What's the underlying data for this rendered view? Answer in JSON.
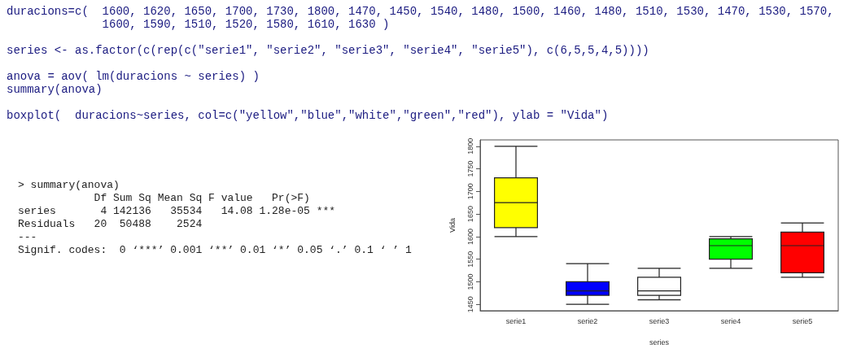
{
  "chart_data": {
    "type": "box",
    "xlabel": "series",
    "ylabel": "Vida",
    "categories": [
      "serie1",
      "serie2",
      "serie3",
      "serie4",
      "serie5"
    ],
    "colors": [
      "#ffff00",
      "#0000ff",
      "#ffffff",
      "#00ff00",
      "#ff0000"
    ],
    "boxes": [
      {
        "low": 1600,
        "q1": 1620,
        "median": 1675,
        "q3": 1730,
        "high": 1800
      },
      {
        "low": 1450,
        "q1": 1470,
        "median": 1480,
        "q3": 1500,
        "high": 1540
      },
      {
        "low": 1460,
        "q1": 1470,
        "median": 1480,
        "q3": 1510,
        "high": 1530
      },
      {
        "low": 1530,
        "q1": 1550,
        "median": 1580,
        "q3": 1595,
        "high": 1600
      },
      {
        "low": 1510,
        "q1": 1520,
        "median": 1580,
        "q3": 1610,
        "high": 1630
      }
    ],
    "ylim": [
      1436,
      1814
    ],
    "yticks": [
      1450,
      1500,
      1550,
      1600,
      1650,
      1700,
      1750,
      1800
    ],
    "grid": false,
    "annotations": [
      "duracions=c(  1600, 1620, 1650, 1700, 1730, 1800, 1470, 1450, 1540, 1480, 1500, 1460, 1480, 1510, 1530, 1470, 1530, 1570,",
      "              1600, 1590, 1510, 1520, 1580, 1610, 1630 )",
      "series <- as.factor(c(rep(c(\"serie1\", \"serie2\", \"serie3\", \"serie4\", \"serie5\"), c(6,5,5,4,5))))",
      "anova = aov( lm(duracions ~ series) )",
      "summary(anova)",
      "boxplot(  duracions~series, col=c(\"yellow\",\"blue\",\"white\",\"green\",\"red\"), ylab = \"Vida\")",
      "> summary(anova)",
      "            Df Sum Sq Mean Sq F value   Pr(>F)    ",
      "series       4 142136   35534   14.08 1.28e-05 ***",
      "Residuals   20  50488    2524                     ",
      "---",
      "Signif. codes:  0 ‘***’ 0.001 ‘**’ 0.01 ‘*’ 0.05 ‘.’ 0.1 ‘ ’ 1"
    ]
  }
}
